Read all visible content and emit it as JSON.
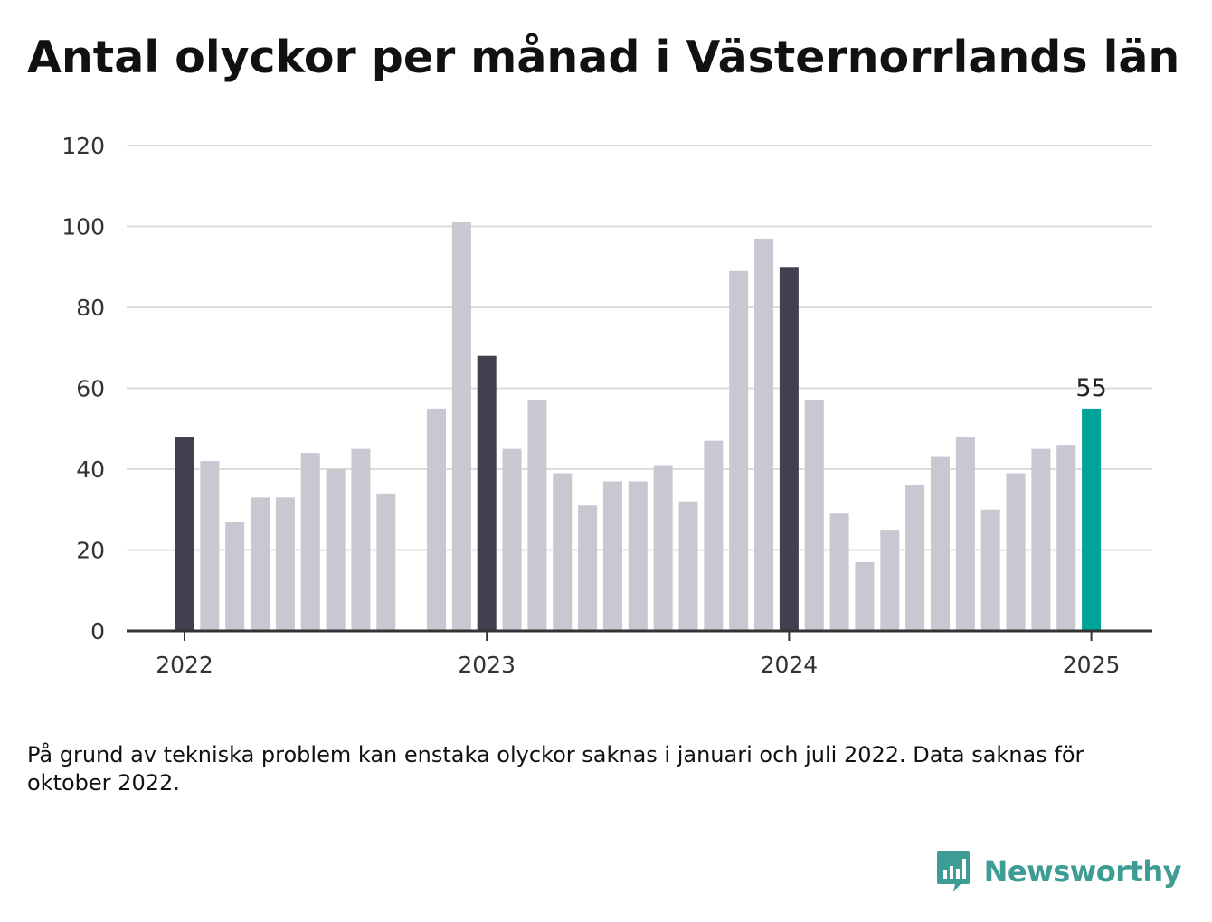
{
  "title": "Antal olyckor per månad i Västernorrlands län",
  "footnote": "På grund av tekniska problem kan enstaka olyckor saknas i januari och juli 2022. Data saknas för oktober 2022.",
  "brand": {
    "name": "Newsworthy",
    "icon": "newsworthy-logo-icon",
    "color": "#3d9c93"
  },
  "colors": {
    "bar_default": "#c8c7d2",
    "bar_january": "#41404e",
    "bar_latest": "#00a399",
    "gridline": "#dcdcdc",
    "axis": "#333333"
  },
  "chart_data": {
    "type": "bar",
    "title": "Antal olyckor per månad i Västernorrlands län",
    "xlabel": "",
    "ylabel": "",
    "ylim": [
      0,
      120
    ],
    "yticks": [
      0,
      20,
      40,
      60,
      80,
      100,
      120
    ],
    "xticks": [
      "2022",
      "2023",
      "2024",
      "2025"
    ],
    "grid": true,
    "categories": [
      "2022-01",
      "2022-02",
      "2022-03",
      "2022-04",
      "2022-05",
      "2022-06",
      "2022-07",
      "2022-08",
      "2022-09",
      "2022-10",
      "2022-11",
      "2022-12",
      "2023-01",
      "2023-02",
      "2023-03",
      "2023-04",
      "2023-05",
      "2023-06",
      "2023-07",
      "2023-08",
      "2023-09",
      "2023-10",
      "2023-11",
      "2023-12",
      "2024-01",
      "2024-02",
      "2024-03",
      "2024-04",
      "2024-05",
      "2024-06",
      "2024-07",
      "2024-08",
      "2024-09",
      "2024-10",
      "2024-11",
      "2024-12",
      "2025-01"
    ],
    "values": [
      48,
      42,
      27,
      33,
      33,
      44,
      40,
      45,
      34,
      null,
      55,
      101,
      68,
      45,
      57,
      39,
      31,
      37,
      37,
      41,
      32,
      47,
      89,
      97,
      90,
      57,
      29,
      17,
      25,
      36,
      43,
      48,
      30,
      39,
      45,
      46,
      55
    ],
    "highlighted": [
      "2022-01",
      "2023-01",
      "2024-01"
    ],
    "latest": "2025-01",
    "annotations": [
      {
        "category": "2025-01",
        "text": "55"
      }
    ]
  }
}
